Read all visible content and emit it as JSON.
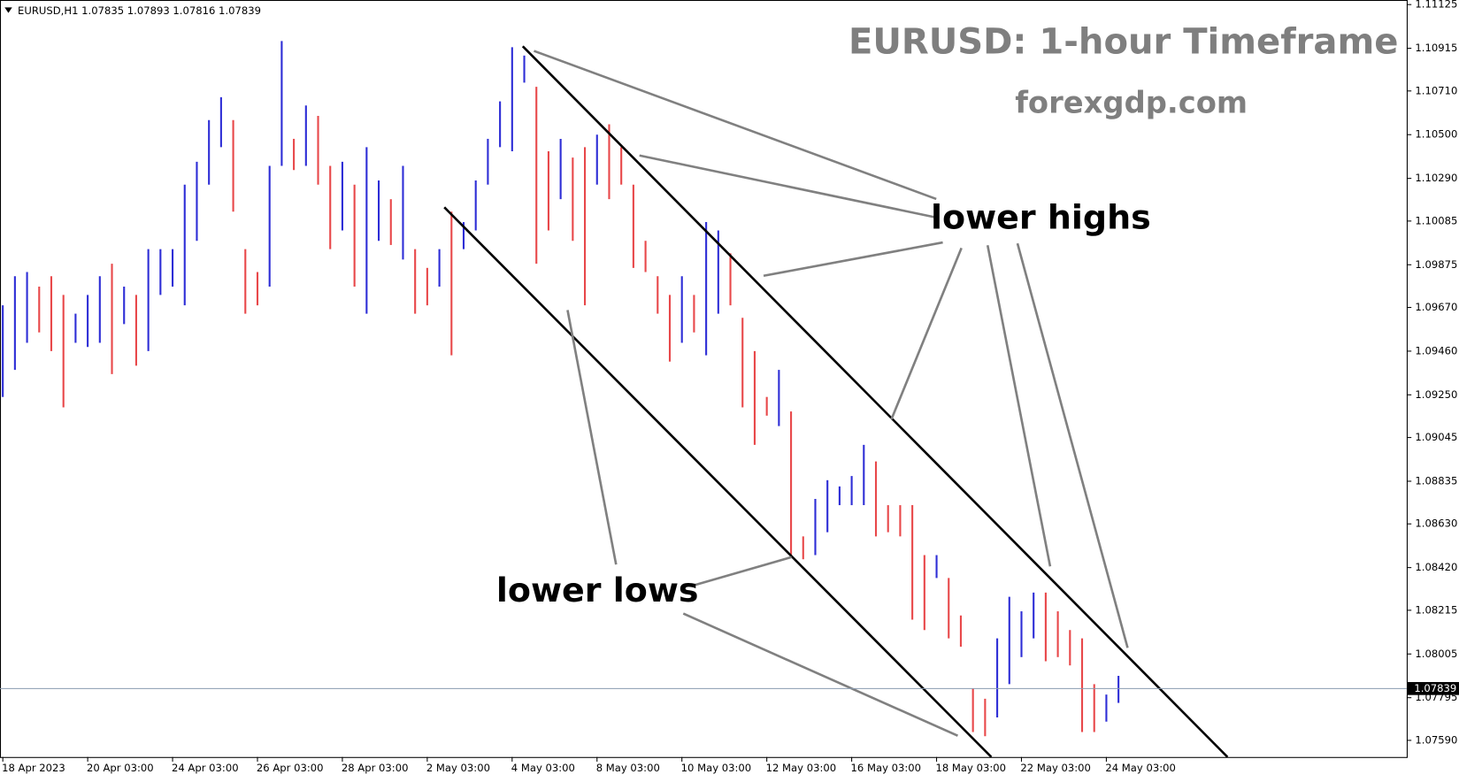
{
  "chart_data": {
    "type": "ohlc",
    "header": "EURUSD,H1  1.07835 1.07893 1.07816 1.07839",
    "title": "EURUSD: 1-hour Timeframe",
    "subtitle": "forexgdp.com",
    "annotations": [
      "lower highs",
      "lower lows"
    ],
    "up_color": "#2e2ed6",
    "down_color": "#e8484a",
    "current_price": {
      "value": 1.07839,
      "label": "1.07839"
    },
    "ylim": [
      1.0751,
      1.11147
    ],
    "yticks": [
      1.11125,
      1.10915,
      {
        "value": 1.1071,
        "label": "1.10710"
      },
      {
        "value": 1.105,
        "label": "1.10500"
      },
      {
        "value": 1.1029,
        "label": "1.10290"
      },
      1.10085,
      1.09875,
      {
        "value": 1.0967,
        "label": "1.09670"
      },
      {
        "value": 1.0946,
        "label": "1.09460"
      },
      {
        "value": 1.0925,
        "label": "1.09250"
      },
      1.09045,
      1.08835,
      {
        "value": 1.0863,
        "label": "1.08630"
      },
      {
        "value": 1.0842,
        "label": "1.08420"
      },
      1.08215,
      1.08005,
      1.07795,
      {
        "value": 1.0759,
        "label": "1.07590"
      }
    ],
    "categories": [
      "18 Apr 2023",
      null,
      null,
      null,
      null,
      null,
      null,
      "20 Apr 03:00",
      null,
      null,
      null,
      null,
      null,
      null,
      "24 Apr 03:00",
      null,
      null,
      null,
      null,
      null,
      null,
      "26 Apr 03:00",
      null,
      null,
      null,
      null,
      null,
      null,
      "28 Apr 03:00",
      null,
      null,
      null,
      null,
      null,
      null,
      "2 May 03:00",
      null,
      null,
      null,
      null,
      null,
      null,
      "4 May 03:00",
      null,
      null,
      null,
      null,
      null,
      null,
      "8 May 03:00",
      null,
      null,
      null,
      null,
      null,
      null,
      "10 May 03:00",
      null,
      null,
      null,
      null,
      null,
      null,
      "12 May 03:00",
      null,
      null,
      null,
      null,
      null,
      null,
      "16 May 03:00",
      null,
      null,
      null,
      null,
      null,
      null,
      "18 May 03:00",
      null,
      null,
      null,
      null,
      null,
      null,
      "22 May 03:00",
      null,
      null,
      null,
      null,
      null,
      null,
      "24 May 03:00",
      null,
      null,
      null,
      null,
      null,
      null,
      null,
      null,
      null,
      null,
      null,
      null,
      null,
      null,
      null,
      null,
      null,
      null,
      null,
      null,
      null,
      null,
      null,
      null
    ],
    "high": [
      1.0968,
      1.0982,
      1.0984,
      1.0977,
      1.0982,
      1.0973,
      1.0964,
      1.0973,
      1.0982,
      1.0988,
      1.0977,
      1.0973,
      1.0995,
      1.0995,
      1.0995,
      1.1026,
      1.1037,
      1.1057,
      1.1068,
      1.1057,
      1.0995,
      1.0984,
      1.1035,
      1.1095,
      1.1048,
      1.1064,
      1.1059,
      1.1035,
      1.1037,
      1.1026,
      1.1044,
      1.1028,
      1.1019,
      1.1035,
      1.0995,
      1.0986,
      1.0995,
      1.1013,
      1.1008,
      1.1028,
      1.1048,
      1.1066,
      1.1092,
      1.1088,
      1.1073,
      1.1042,
      1.1048,
      1.1039,
      1.1044,
      1.105,
      1.1055,
      1.1044,
      1.1026,
      1.0999,
      1.0982,
      1.0973,
      1.0982,
      1.0973,
      1.1008,
      1.1004,
      1.0993,
      1.0962,
      1.0946,
      1.0924,
      1.0937,
      1.0917,
      1.0857,
      1.0875,
      1.0884,
      1.0881,
      1.0886,
      1.0901,
      1.0893,
      1.0872,
      1.0872,
      1.0872,
      1.0848,
      1.0848,
      1.0837,
      1.0819,
      1.0784,
      1.0779,
      1.0808,
      1.0828,
      1.0821,
      1.083,
      1.083,
      1.0821,
      1.0812,
      1.0808,
      1.0786,
      1.0781,
      1.079,
      null,
      null,
      null,
      null,
      null,
      null,
      null,
      null,
      null,
      null,
      null,
      null,
      null,
      null,
      null,
      null,
      null,
      null,
      null,
      null,
      null,
      null,
      null
    ],
    "low": [
      1.0924,
      1.0937,
      1.095,
      1.0955,
      1.0946,
      1.0919,
      1.095,
      1.0948,
      1.095,
      1.0935,
      1.0959,
      1.0939,
      1.0946,
      1.0973,
      1.0977,
      1.0968,
      1.0999,
      1.1026,
      1.1044,
      1.1013,
      1.0964,
      1.0968,
      1.0977,
      1.1035,
      1.1033,
      1.1035,
      1.1026,
      1.0995,
      1.1004,
      1.0977,
      1.0964,
      1.0999,
      1.0997,
      1.099,
      1.0964,
      1.0968,
      1.0977,
      1.0944,
      1.0995,
      1.1004,
      1.1026,
      1.1044,
      1.1042,
      1.1075,
      1.0988,
      1.1004,
      1.1019,
      1.0999,
      1.0968,
      1.1026,
      1.1019,
      1.1026,
      1.0986,
      1.0984,
      1.0964,
      1.0941,
      1.095,
      1.0955,
      1.0944,
      1.0964,
      1.0968,
      1.0919,
      1.0901,
      1.0915,
      1.091,
      1.0848,
      1.0846,
      1.0848,
      1.0859,
      1.0872,
      1.0872,
      1.0872,
      1.0857,
      1.0859,
      1.0857,
      1.0817,
      1.0812,
      1.0837,
      1.0808,
      1.0804,
      1.0763,
      1.0761,
      1.077,
      1.0786,
      1.0799,
      1.0808,
      1.0797,
      1.0799,
      1.0795,
      1.0763,
      1.0763,
      1.0768,
      1.0777,
      null,
      null,
      null,
      null,
      null,
      null,
      null,
      null,
      null,
      null,
      null,
      null,
      null,
      null,
      null,
      null,
      null,
      null,
      null,
      null,
      null,
      null,
      null
    ]
  }
}
